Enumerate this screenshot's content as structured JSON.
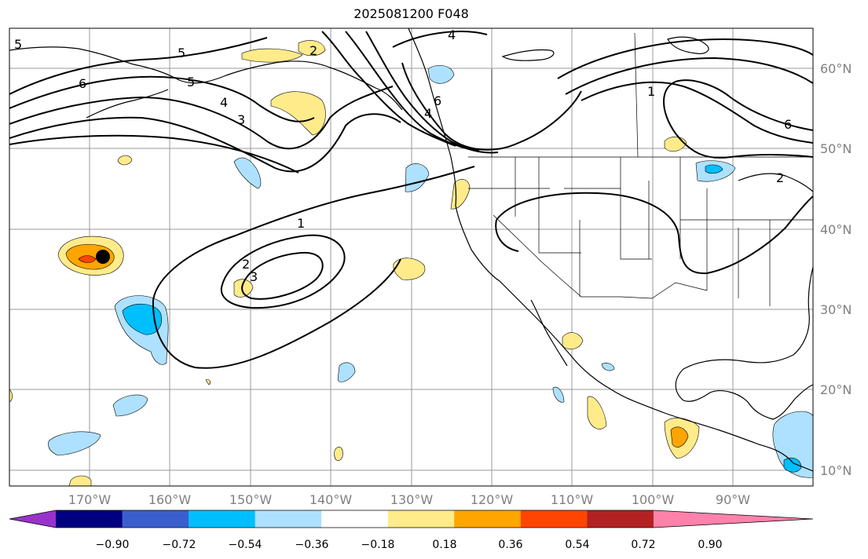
{
  "title": "2025081200 F048",
  "map": {
    "lon_labels": [
      "170°W",
      "160°W",
      "150°W",
      "140°W",
      "130°W",
      "120°W",
      "110°W",
      "100°W",
      "90°W"
    ],
    "lat_labels": [
      "60°N",
      "50°N",
      "40°N",
      "30°N",
      "20°N",
      "10°N"
    ],
    "contour_labels": [
      "5",
      "6",
      "5",
      "4",
      "3",
      "2",
      "4",
      "6",
      "4",
      "1",
      "1",
      "2",
      "3",
      "2",
      "6",
      "5"
    ],
    "marker": "black-dot"
  },
  "colorbar": {
    "colors": [
      "#9932CC",
      "#000080",
      "#3A5FCD",
      "#00BFFF",
      "#ADE1FF",
      "#FFFFFF",
      "#FFEB8A",
      "#FFA500",
      "#FF4500",
      "#B22222",
      "#FF82AB"
    ],
    "ticks": [
      "−0.90",
      "−0.72",
      "−0.54",
      "−0.36",
      "−0.18",
      "0.18",
      "0.36",
      "0.54",
      "0.72",
      "0.90"
    ]
  }
}
